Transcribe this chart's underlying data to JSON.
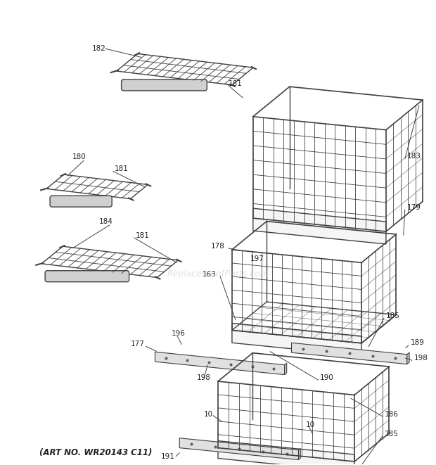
{
  "art_no": "(ART NO. WR20143 C11)",
  "bg_color": "#ffffff",
  "line_color": "#404040",
  "text_color": "#222222",
  "watermark_color": "#c8c8c8",
  "watermark_text": "ReplacementParts.com",
  "figsize": [
    6.2,
    6.61
  ],
  "dpi": 100
}
